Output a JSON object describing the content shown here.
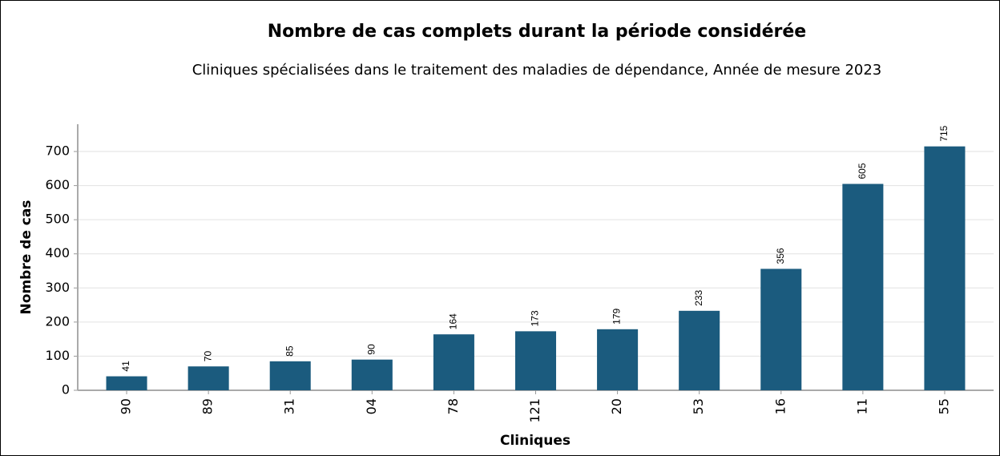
{
  "chart_data": {
    "type": "bar",
    "title": "Nombre de cas complets durant la période considérée",
    "subtitle": "Cliniques spécialisées dans le traitement des maladies de dépendance, Année de mesure 2023",
    "x_label": "Cliniques",
    "y_label": "Nombre de cas",
    "categories": [
      "90",
      "89",
      "31",
      "04",
      "78",
      "121",
      "20",
      "53",
      "16",
      "11",
      "55"
    ],
    "values": [
      41,
      70,
      85,
      90,
      164,
      173,
      179,
      233,
      356,
      605,
      715
    ],
    "color": "#1b5b7e",
    "ylim": [
      0,
      780
    ],
    "yticks": [
      0,
      100,
      200,
      300,
      400,
      500,
      600,
      700
    ],
    "grid": true
  }
}
